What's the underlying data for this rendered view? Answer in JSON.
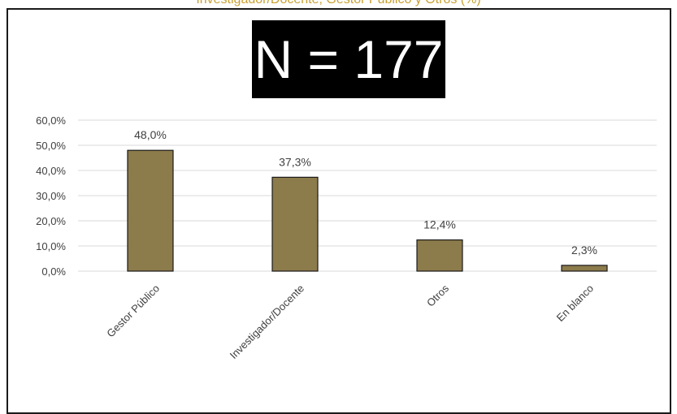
{
  "top_caption": "Investigador/Docente, Gestor Público y Otros (%)",
  "n_label": "N = 177",
  "colors": {
    "bar": "#8c7b4b",
    "bar_stroke": "#1a1a1a",
    "grid": "#d9d9d9",
    "text": "#404040",
    "caption": "#c8a032"
  },
  "chart_data": {
    "type": "bar",
    "categories": [
      "Gestor Público",
      "Investigador/Docente",
      "Otros",
      "En blanco"
    ],
    "values": [
      48.0,
      37.3,
      12.4,
      2.3
    ],
    "value_labels": [
      "48,0%",
      "37,3%",
      "12,4%",
      "2,3%"
    ],
    "y_ticks": [
      "0,0%",
      "10,0%",
      "20,0%",
      "30,0%",
      "40,0%",
      "50,0%",
      "60,0%"
    ],
    "ylim": [
      0,
      60
    ],
    "grid": true,
    "legend": "none"
  }
}
